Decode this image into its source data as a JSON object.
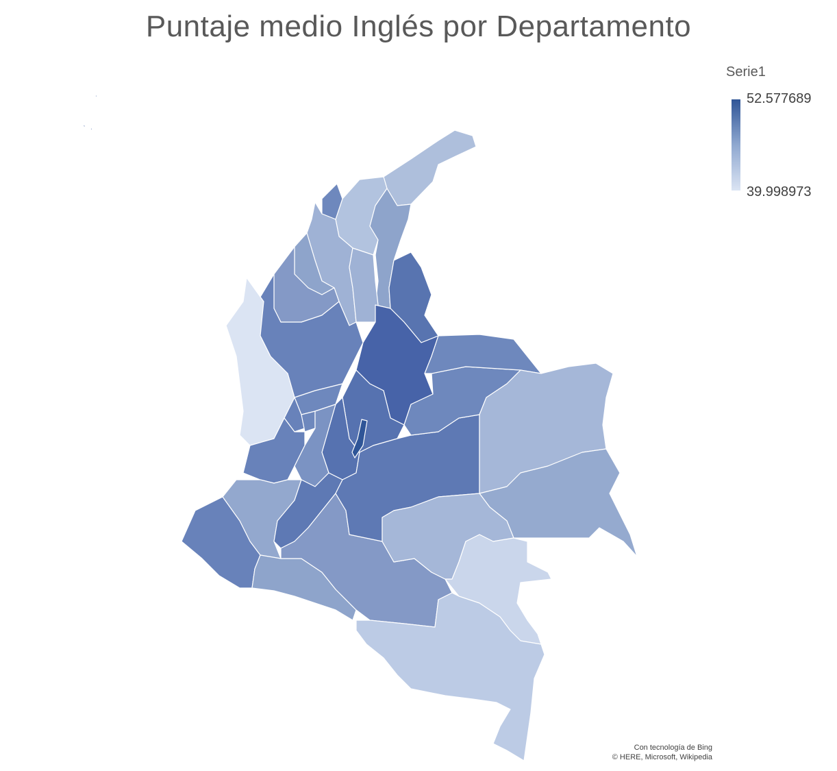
{
  "title": "Puntaje medio Inglés  por Departamento",
  "legend": {
    "title": "Serie1",
    "max_label": "52.577689",
    "min_label": "39.998973",
    "color_max": "#2f5597",
    "color_min": "#dbe4f3"
  },
  "attribution": {
    "line1": "Con tecnología de Bing",
    "line2": "© HERE, Microsoft, Wikipedia"
  },
  "chart_data": {
    "type": "choropleth",
    "title": "Puntaje medio Inglés  por Departamento",
    "series_name": "Serie1",
    "value_range": [
      39.998973,
      52.577689
    ],
    "color_scale": [
      "#dbe4f3",
      "#2f5597"
    ]
  }
}
